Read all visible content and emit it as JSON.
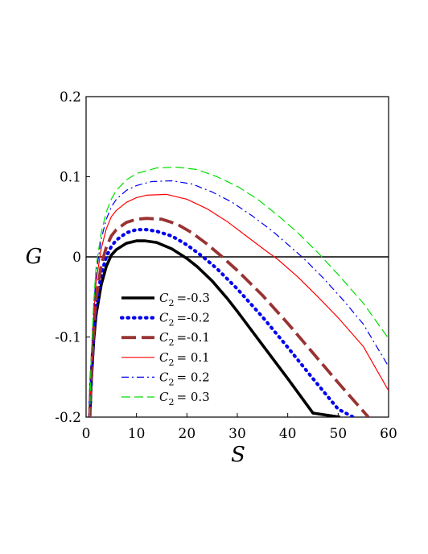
{
  "chart_data": {
    "type": "line",
    "xlabel": "S",
    "ylabel": "G",
    "xlim": [
      0,
      60
    ],
    "ylim": [
      -0.2,
      0.2
    ],
    "xticks": [
      0,
      10,
      20,
      30,
      40,
      50,
      60
    ],
    "yticks": [
      -0.2,
      -0.1,
      0,
      0.1,
      0.2
    ],
    "ytick_labels": [
      "-0.2",
      "-0.1",
      "0",
      "0.1",
      "0.2"
    ],
    "grid": false,
    "reference_line_y": 0,
    "legend_placement": "bottom-left",
    "series": [
      {
        "name": "C2 = -0.3",
        "legend_symbol": "C",
        "legend_sub": "2",
        "legend_value": "=-0.3",
        "color": "#000000",
        "style": "solid-thick",
        "x": [
          0.7,
          1,
          1.5,
          2,
          3,
          4,
          5,
          6,
          8,
          10,
          11.7,
          14,
          17,
          20,
          22,
          25,
          28,
          30,
          35,
          40,
          45,
          50.4
        ],
        "y": [
          -0.205,
          -0.16,
          -0.105,
          -0.072,
          -0.035,
          -0.012,
          0.002,
          0.009,
          0.017,
          0.02,
          0.02,
          0.018,
          0.01,
          -0.002,
          -0.012,
          -0.03,
          -0.052,
          -0.068,
          -0.11,
          -0.152,
          -0.195,
          -0.2
        ]
      },
      {
        "name": "C2 = -0.2",
        "legend_symbol": "C",
        "legend_sub": "2",
        "legend_value": "=-0.2",
        "color": "#0000ee",
        "style": "dotted-thick",
        "x": [
          0.7,
          1,
          1.5,
          2,
          3,
          4,
          5,
          6,
          8,
          10,
          12,
          14,
          17,
          20,
          23,
          26,
          30,
          35,
          40,
          45,
          50,
          53
        ],
        "y": [
          -0.205,
          -0.155,
          -0.098,
          -0.062,
          -0.022,
          0.0,
          0.013,
          0.021,
          0.03,
          0.034,
          0.034,
          0.032,
          0.026,
          0.015,
          0.001,
          -0.015,
          -0.04,
          -0.075,
          -0.113,
          -0.152,
          -0.19,
          -0.2
        ]
      },
      {
        "name": "C2 = -0.1",
        "legend_symbol": "C",
        "legend_sub": "2",
        "legend_value": "=-0.1",
        "color": "#993333",
        "style": "dashed-thick",
        "x": [
          0.7,
          1,
          1.5,
          2,
          3,
          4,
          5,
          6,
          8,
          10,
          12,
          15,
          18,
          21,
          24,
          27,
          30,
          35,
          40,
          45,
          50,
          56
        ],
        "y": [
          -0.205,
          -0.15,
          -0.09,
          -0.052,
          -0.01,
          0.012,
          0.026,
          0.034,
          0.043,
          0.047,
          0.048,
          0.047,
          0.041,
          0.03,
          0.016,
          0.0,
          -0.017,
          -0.048,
          -0.083,
          -0.12,
          -0.157,
          -0.2
        ]
      },
      {
        "name": "C2 = 0.1",
        "legend_symbol": "C",
        "legend_sub": "2",
        "legend_value": "= 0.1",
        "color": "#ff0000",
        "style": "solid-thin",
        "x": [
          0.7,
          1,
          1.5,
          2,
          3,
          4,
          5,
          6,
          8,
          10,
          12,
          16,
          20,
          24,
          28,
          32,
          36,
          38,
          42,
          46,
          50,
          55,
          60
        ],
        "y": [
          -0.2,
          -0.14,
          -0.075,
          -0.03,
          0.01,
          0.035,
          0.05,
          0.058,
          0.068,
          0.074,
          0.077,
          0.078,
          0.072,
          0.06,
          0.044,
          0.025,
          0.006,
          -0.003,
          -0.025,
          -0.05,
          -0.076,
          -0.112,
          -0.167
        ]
      },
      {
        "name": "C2 = 0.2",
        "legend_symbol": "C",
        "legend_sub": "2",
        "legend_value": "= 0.2",
        "color": "#0000ee",
        "style": "dashdot-thin",
        "x": [
          0.7,
          1,
          1.5,
          2,
          3,
          4,
          5,
          6,
          8,
          10,
          13,
          17,
          21,
          25,
          29,
          33,
          37,
          41,
          43,
          47,
          51,
          55,
          60
        ],
        "y": [
          -0.2,
          -0.135,
          -0.065,
          -0.02,
          0.022,
          0.047,
          0.062,
          0.072,
          0.083,
          0.089,
          0.094,
          0.095,
          0.091,
          0.081,
          0.068,
          0.051,
          0.032,
          0.01,
          -0.001,
          -0.026,
          -0.054,
          -0.084,
          -0.137
        ]
      },
      {
        "name": "C2 = 0.3",
        "legend_symbol": "C",
        "legend_sub": "2",
        "legend_value": "= 0.3",
        "color": "#00dd00",
        "style": "dashed-thin",
        "x": [
          0.7,
          1,
          1.5,
          2,
          3,
          4,
          5,
          6,
          8,
          10,
          14,
          18,
          22,
          26,
          30,
          34,
          38,
          42,
          46,
          50,
          55,
          60
        ],
        "y": [
          -0.2,
          -0.13,
          -0.058,
          -0.012,
          0.03,
          0.056,
          0.072,
          0.083,
          0.096,
          0.104,
          0.111,
          0.112,
          0.109,
          0.1,
          0.088,
          0.072,
          0.052,
          0.03,
          0.005,
          -0.022,
          -0.058,
          -0.102
        ]
      }
    ]
  }
}
